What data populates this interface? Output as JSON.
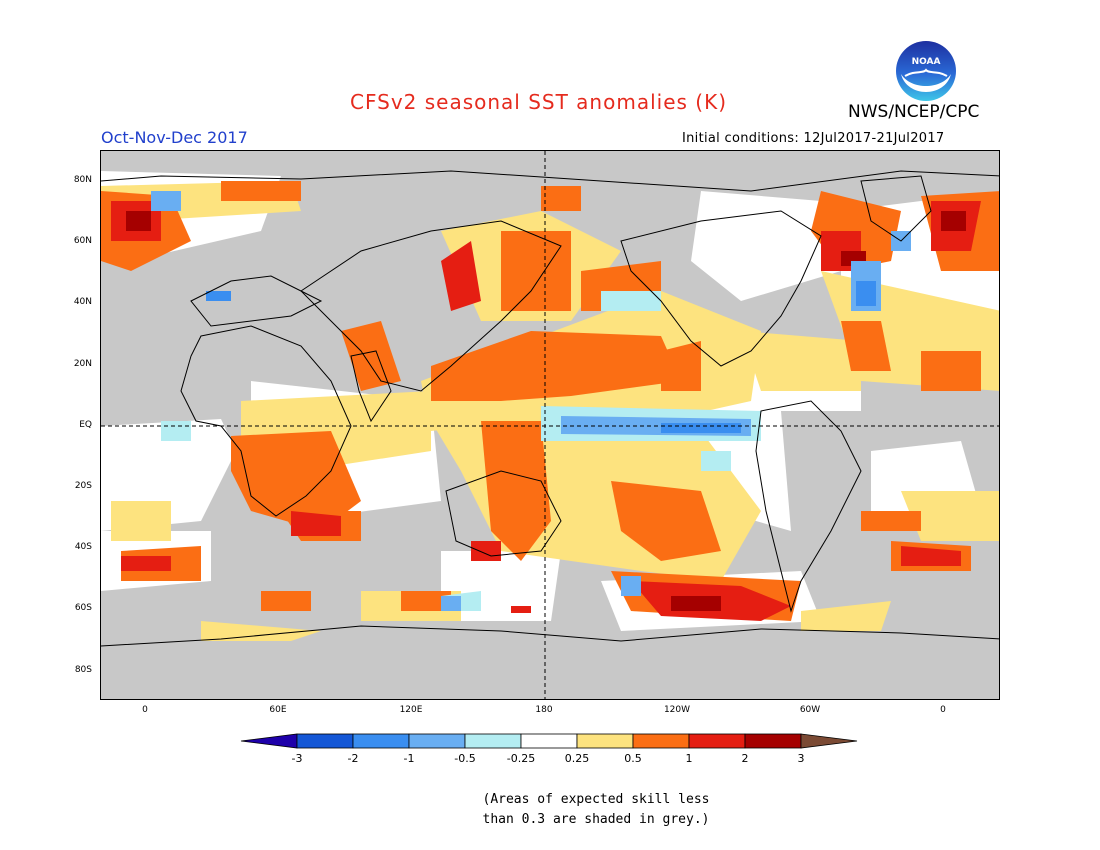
{
  "title": "CFSv2 seasonal SST anomalies (K)",
  "agency": "NWS/NCEP/CPC",
  "logo_text": "NOAA",
  "season": "Oct-Nov-Dec 2017",
  "initial_conditions": "Initial conditions: 12Jul2017-21Jul2017",
  "map": {
    "lat_labels": [
      "80N",
      "60N",
      "40N",
      "20N",
      "EQ",
      "20S",
      "40S",
      "60S",
      "80S"
    ],
    "lon_labels": [
      "0",
      "60E",
      "120E",
      "180",
      "120W",
      "60W",
      "0"
    ],
    "land_color": "#c8c8c8",
    "ocean_neutral_color": "#ffffff"
  },
  "colorbar": {
    "ticks": [
      "-3",
      "-2",
      "-1",
      "-0.5",
      "-0.25",
      "0.25",
      "0.5",
      "1",
      "2",
      "3"
    ],
    "colors": [
      "#1e00aa",
      "#1457d6",
      "#3a8ef0",
      "#69aef2",
      "#b4edf2",
      "#ffffff",
      "#fde37f",
      "#fb6e14",
      "#e51e12",
      "#a50000",
      "#7b4a34"
    ]
  },
  "footnote": {
    "line1": "(Areas of expected skill less",
    "line2": "than 0.3 are shaded in grey.)"
  }
}
